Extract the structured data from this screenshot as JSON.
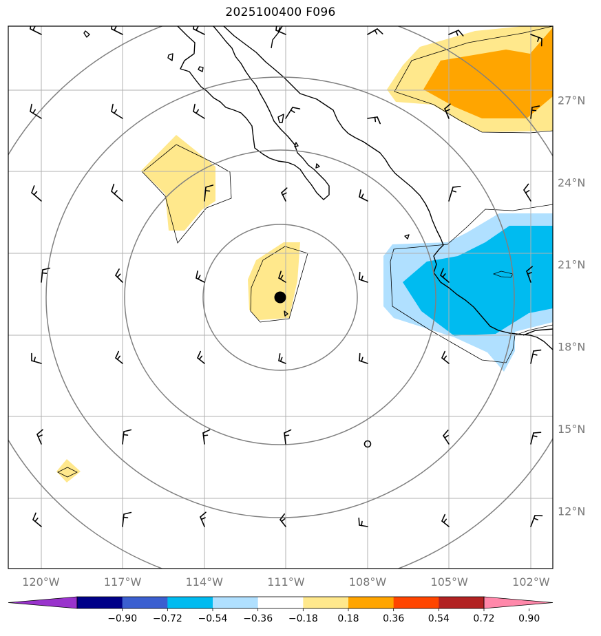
{
  "title": "2025100400 F096",
  "map": {
    "lon_ticks": [
      "120°W",
      "117°W",
      "114°W",
      "111°W",
      "108°W",
      "105°W",
      "102°W"
    ],
    "lat_ticks": [
      "27°N",
      "24°N",
      "21°N",
      "18°N",
      "15°N",
      "12°N"
    ],
    "lon_values": [
      -120,
      -117,
      -114,
      -111,
      -108,
      -105,
      -102
    ],
    "lat_values": [
      27,
      24,
      21,
      18,
      15,
      12
    ],
    "lon_range": [
      -121.2,
      -101.2
    ],
    "lat_range": [
      9.9,
      29.7
    ],
    "center": {
      "lon": -111.2,
      "lat": 19.4
    },
    "range_rings_count": 4,
    "grid": true
  },
  "colorbar": {
    "levels": [
      "-0.90",
      "-0.72",
      "-0.54",
      "-0.36",
      "-0.18",
      "0.18",
      "0.36",
      "0.54",
      "0.72",
      "0.90"
    ],
    "colors": [
      "#9933cc",
      "#000088",
      "#3b5fd0",
      "#00bbf0",
      "#b0e0ff",
      "#ffffff",
      "#ffe88c",
      "#ffa500",
      "#ff4500",
      "#b22222",
      "#ff88aa"
    ],
    "extend": "both"
  },
  "colors": {
    "grid": "#b0b0b0",
    "rings": "#808080",
    "tick_labels": "#777777",
    "light_blue": "#b0e0ff",
    "blue": "#00bbf0",
    "light_yellow": "#ffe88c",
    "orange": "#ffa500"
  },
  "icons": [
    "storm-center-dot-icon",
    "wind-barb-icon",
    "calm-wind-circle-icon"
  ]
}
